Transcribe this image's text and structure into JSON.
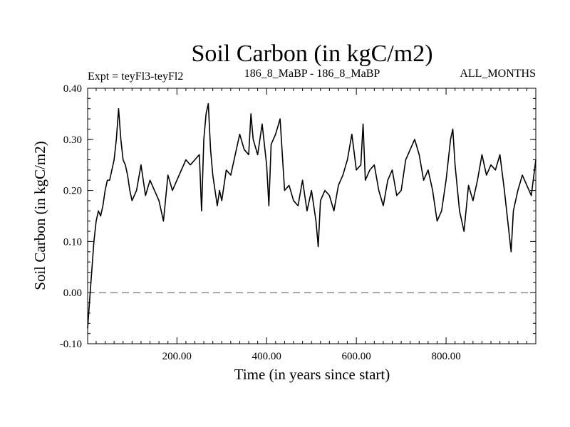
{
  "chart_data": {
    "type": "line",
    "title": "Soil Carbon (in kgC/m2)",
    "subtitle_left": "Expt = teyFl3-teyFl2",
    "subtitle_center": "186_8_MaBP - 186_8_MaBP",
    "subtitle_right": "ALL_MONTHS",
    "xlabel": "Time (in years since start)",
    "ylabel": "Soil Carbon (in kgC/m2)",
    "xlim": [
      1,
      1000
    ],
    "ylim": [
      -0.1,
      0.4
    ],
    "xticks": [
      200,
      400,
      600,
      800
    ],
    "xtick_labels": [
      "200.00",
      "400.00",
      "600.00",
      "800.00"
    ],
    "yticks": [
      -0.1,
      0.0,
      0.1,
      0.2,
      0.3,
      0.4
    ],
    "ytick_labels": [
      "-0.10",
      "0.00",
      "0.10",
      "0.20",
      "0.30",
      "0.40"
    ],
    "reference_line": {
      "y": 0.0,
      "style": "dashed"
    },
    "line_color": "#000000",
    "series": [
      {
        "name": "Soil Carbon",
        "x": [
          1,
          5,
          10,
          15,
          20,
          25,
          30,
          35,
          40,
          45,
          50,
          55,
          60,
          65,
          70,
          75,
          80,
          85,
          90,
          95,
          100,
          110,
          120,
          130,
          140,
          150,
          160,
          170,
          180,
          190,
          200,
          210,
          220,
          230,
          240,
          250,
          255,
          260,
          265,
          270,
          275,
          280,
          285,
          290,
          295,
          300,
          310,
          320,
          330,
          340,
          350,
          360,
          365,
          370,
          380,
          390,
          400,
          405,
          410,
          420,
          430,
          440,
          450,
          460,
          470,
          480,
          490,
          500,
          510,
          515,
          520,
          530,
          540,
          550,
          560,
          570,
          580,
          590,
          600,
          610,
          615,
          620,
          630,
          640,
          650,
          660,
          670,
          680,
          690,
          700,
          710,
          720,
          730,
          740,
          750,
          760,
          770,
          780,
          790,
          800,
          810,
          815,
          820,
          830,
          840,
          850,
          860,
          870,
          880,
          890,
          900,
          910,
          920,
          930,
          940,
          945,
          950,
          960,
          970,
          980,
          990,
          1000
        ],
        "values": [
          -0.07,
          -0.02,
          0.04,
          0.1,
          0.14,
          0.16,
          0.15,
          0.17,
          0.2,
          0.22,
          0.22,
          0.24,
          0.26,
          0.3,
          0.36,
          0.3,
          0.26,
          0.25,
          0.23,
          0.2,
          0.18,
          0.2,
          0.25,
          0.19,
          0.22,
          0.2,
          0.18,
          0.14,
          0.23,
          0.2,
          0.22,
          0.24,
          0.26,
          0.25,
          0.26,
          0.27,
          0.16,
          0.3,
          0.35,
          0.37,
          0.28,
          0.23,
          0.2,
          0.17,
          0.2,
          0.18,
          0.24,
          0.23,
          0.27,
          0.31,
          0.28,
          0.27,
          0.35,
          0.3,
          0.27,
          0.33,
          0.25,
          0.17,
          0.29,
          0.31,
          0.34,
          0.2,
          0.21,
          0.18,
          0.17,
          0.22,
          0.16,
          0.2,
          0.14,
          0.09,
          0.18,
          0.2,
          0.19,
          0.16,
          0.21,
          0.23,
          0.26,
          0.31,
          0.24,
          0.25,
          0.33,
          0.22,
          0.24,
          0.25,
          0.2,
          0.17,
          0.22,
          0.24,
          0.19,
          0.2,
          0.26,
          0.28,
          0.3,
          0.27,
          0.22,
          0.24,
          0.2,
          0.14,
          0.16,
          0.22,
          0.3,
          0.32,
          0.25,
          0.16,
          0.12,
          0.21,
          0.18,
          0.22,
          0.27,
          0.23,
          0.25,
          0.24,
          0.27,
          0.2,
          0.12,
          0.08,
          0.16,
          0.2,
          0.23,
          0.21,
          0.19,
          0.26
        ]
      }
    ]
  }
}
